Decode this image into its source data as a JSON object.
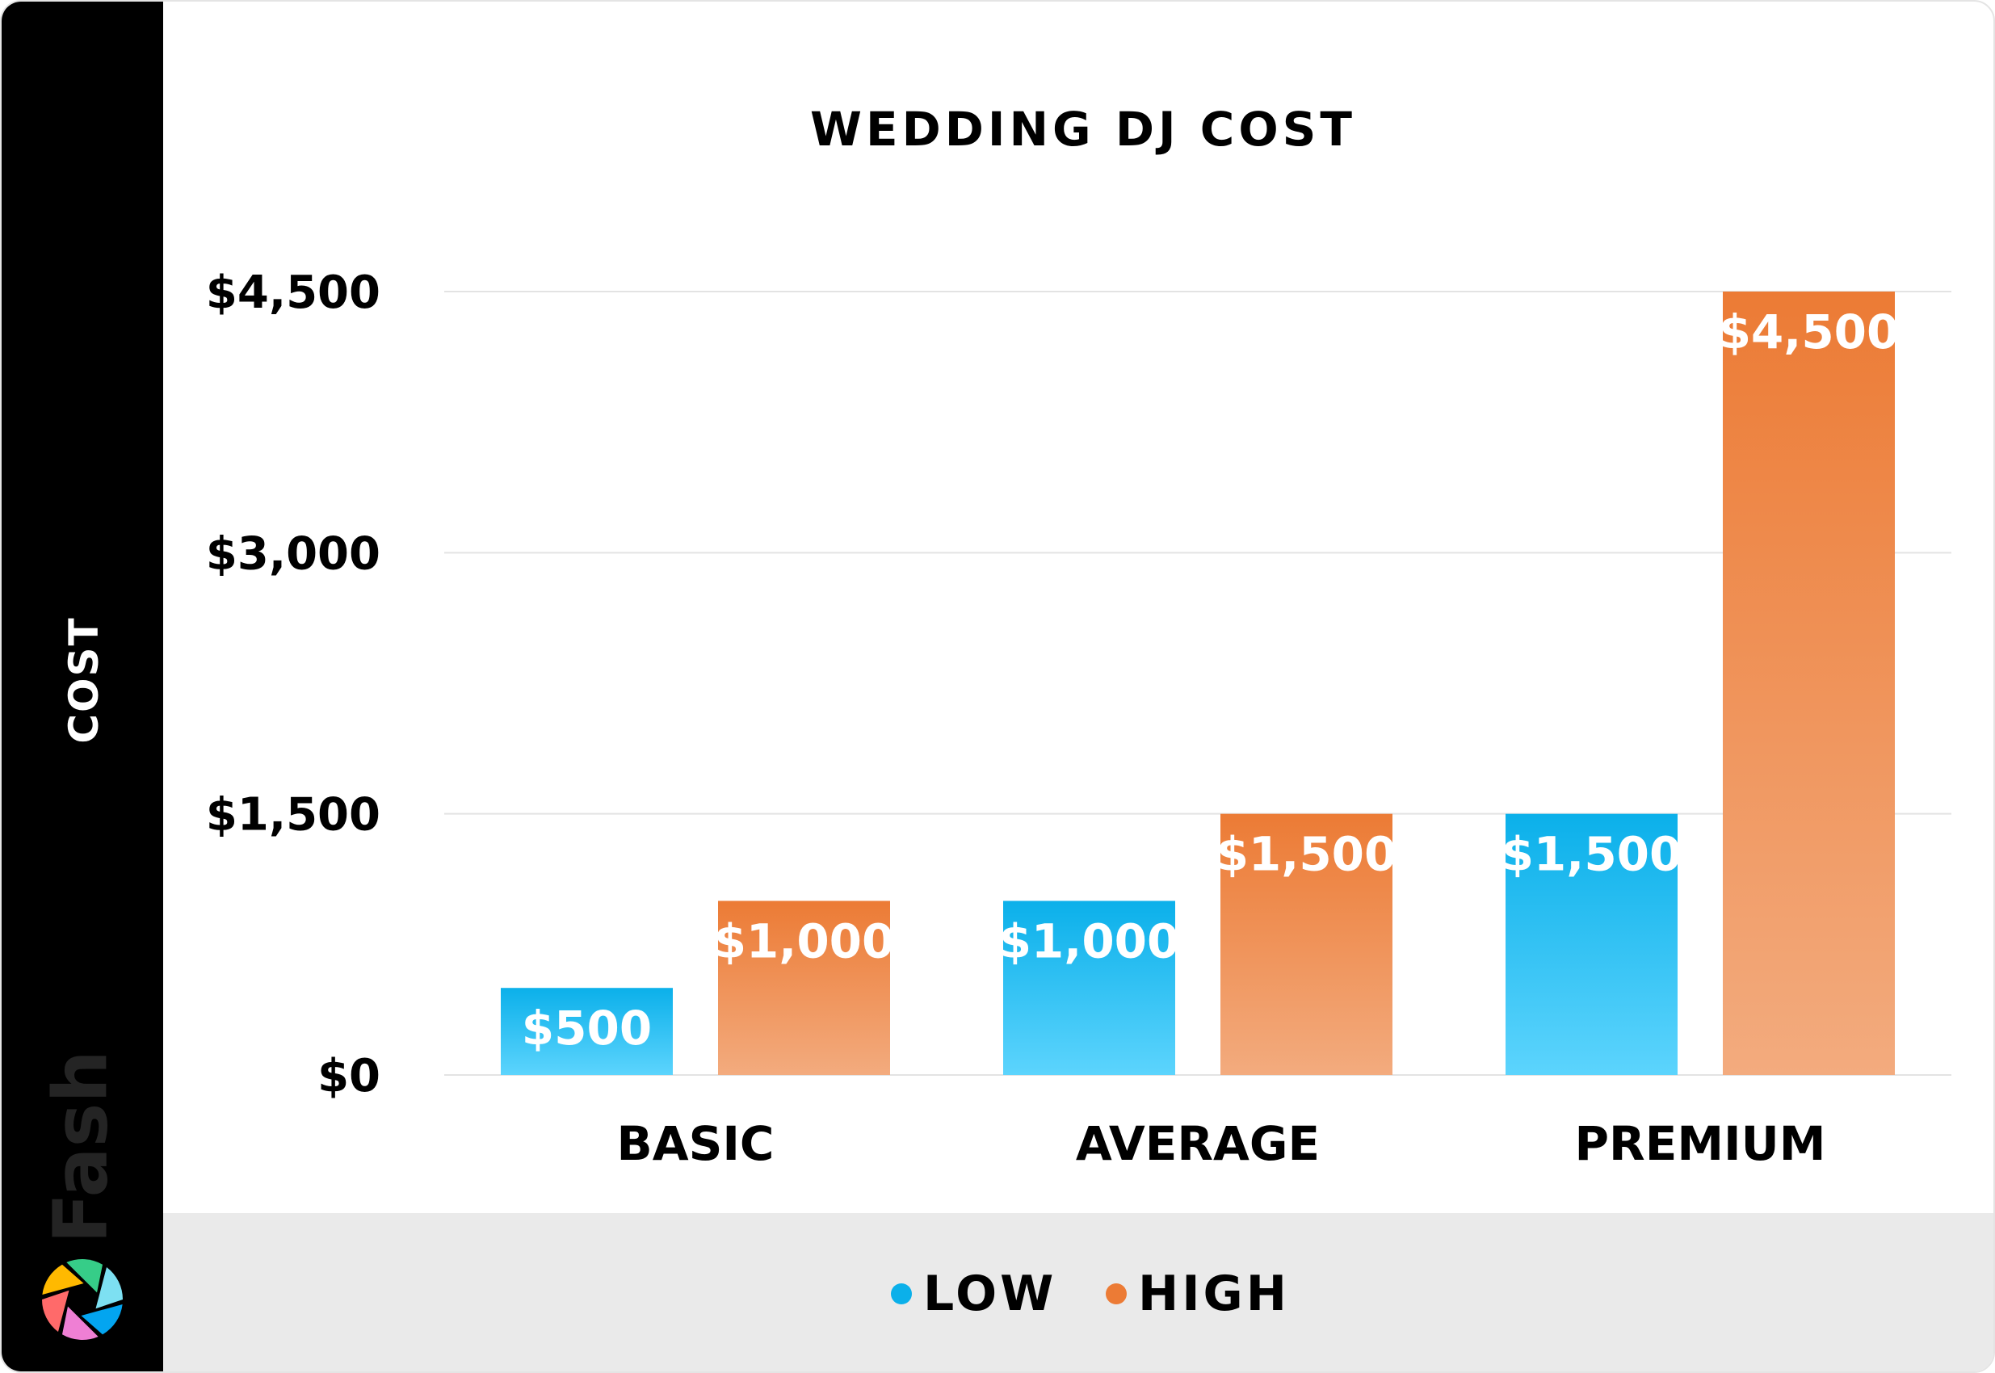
{
  "brand": {
    "name": "Fash",
    "logo_colors": [
      "#36cd88",
      "#7de0f2",
      "#03a5f0",
      "#ef7fd4",
      "#ff6a6a",
      "#ffb900"
    ]
  },
  "chart_data": {
    "type": "bar",
    "title": "WEDDING DJ COST",
    "xlabel": "",
    "ylabel": "COST",
    "categories": [
      "BASIC",
      "AVERAGE",
      "PREMIUM"
    ],
    "series": [
      {
        "name": "LOW",
        "values": [
          500,
          1000,
          1500
        ],
        "labels": [
          "$500",
          "$1,000",
          "$1,500"
        ],
        "color": "#0bb0ea",
        "color_light": "#5cd4fd"
      },
      {
        "name": "HIGH",
        "values": [
          1000,
          1500,
          4500
        ],
        "labels": [
          "$1,000",
          "$1,500",
          "$4,500"
        ],
        "color": "#ec7b35",
        "color_light": "#f3ab7e"
      }
    ],
    "ylim": [
      0,
      4500
    ],
    "yticks": [
      0,
      1500,
      3000,
      4500
    ],
    "ytick_labels": [
      "$0",
      "$1,500",
      "$3,000",
      "$4,500"
    ],
    "grid": true,
    "legend_position": "bottom"
  }
}
